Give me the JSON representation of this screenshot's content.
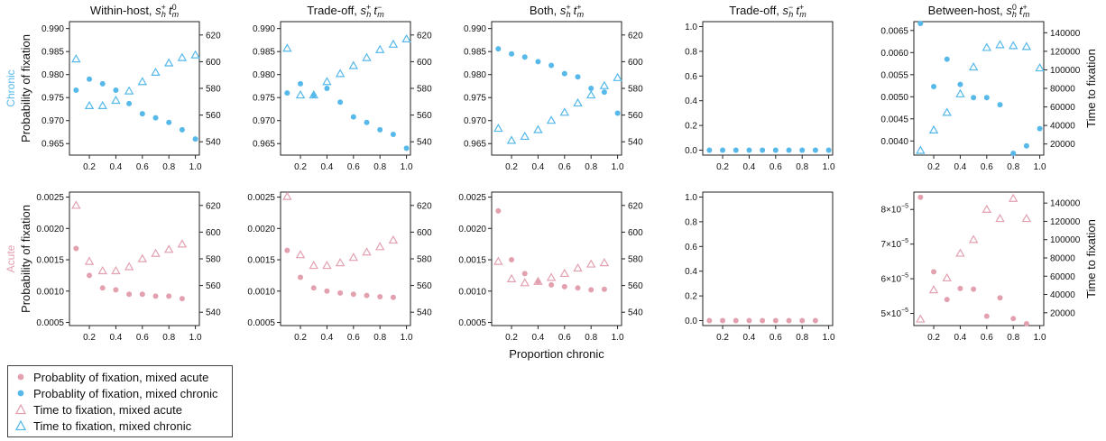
{
  "colors": {
    "acute": "#e3a1b0",
    "chronic": "#56b9ea",
    "axis": "#222222"
  },
  "panel_titles": [
    {
      "main": "Within-host,",
      "t1": "+",
      "t2": "0"
    },
    {
      "main": "Trade-off,",
      "t1": "+",
      "t2": "−"
    },
    {
      "main": "Both,",
      "t1": "+",
      "t2": "+"
    },
    {
      "main": "Trade-off,",
      "t1": "−",
      "t2": "+"
    },
    {
      "main": "Between-host,",
      "t1": "0",
      "t2": "+"
    }
  ],
  "row_labels": {
    "chronic": "Chronic",
    "acute": "Acute"
  },
  "ylabel_left": "Probability of fixation",
  "ylabel_right": "Time to fixation",
  "xlabel": "Proportion chronic",
  "legend": [
    {
      "label": "Probablity of fixation, mixed acute",
      "marker": "circle",
      "color_key": "acute"
    },
    {
      "label": "Probablity of fixation, mixed chronic",
      "marker": "circle",
      "color_key": "chronic"
    },
    {
      "label": "Time to fixation, mixed acute",
      "marker": "triangle",
      "color_key": "acute"
    },
    {
      "label": "Time to fixation, mixed chronic",
      "marker": "triangle",
      "color_key": "chronic"
    }
  ],
  "chart_data": [
    {
      "type": "scatter",
      "row": "chronic",
      "col": 0,
      "x": [
        0.1,
        0.2,
        0.3,
        0.4,
        0.5,
        0.6,
        0.7,
        0.8,
        0.9,
        1.0
      ],
      "left": {
        "ylim": [
          0.9625,
          0.9915
        ],
        "ticks": [
          "0.965",
          "0.970",
          "0.975",
          "0.980",
          "0.985",
          "0.990"
        ],
        "values": [
          0.9766,
          0.979,
          0.978,
          0.9766,
          0.9737,
          0.9715,
          0.9706,
          0.9696,
          0.968,
          0.966
        ]
      },
      "right": {
        "ylim": [
          530,
          630
        ],
        "ticks": [
          "540",
          "560",
          "580",
          "600",
          "620"
        ],
        "values": [
          602,
          567,
          567,
          571,
          578,
          585,
          592,
          599,
          603,
          605
        ]
      }
    },
    {
      "type": "scatter",
      "row": "chronic",
      "col": 1,
      "x": [
        0.1,
        0.2,
        0.3,
        0.4,
        0.5,
        0.6,
        0.7,
        0.8,
        0.9,
        1.0
      ],
      "left": {
        "ylim": [
          0.9625,
          0.9915
        ],
        "ticks": [
          "0.965",
          "0.970",
          "0.975",
          "0.980",
          "0.985",
          "0.990"
        ],
        "values": [
          0.976,
          0.978,
          0.9755,
          0.977,
          0.974,
          0.9708,
          0.9696,
          0.968,
          0.967,
          0.964
        ]
      },
      "right": {
        "ylim": [
          530,
          630
        ],
        "ticks": [
          "540",
          "560",
          "580",
          "600",
          "620"
        ],
        "values": [
          610,
          575,
          575,
          585,
          591,
          597,
          603,
          609,
          613,
          617
        ]
      }
    },
    {
      "type": "scatter",
      "row": "chronic",
      "col": 2,
      "x": [
        0.1,
        0.2,
        0.3,
        0.4,
        0.5,
        0.6,
        0.7,
        0.8,
        0.9,
        1.0
      ],
      "left": {
        "ylim": [
          0.9625,
          0.9915
        ],
        "ticks": [
          "0.965",
          "0.970",
          "0.975",
          "0.980",
          "0.985",
          "0.990"
        ],
        "values": [
          0.9856,
          0.9845,
          0.9838,
          0.9828,
          0.982,
          0.9802,
          0.9795,
          0.977,
          0.9762,
          0.9716
        ]
      },
      "right": {
        "ylim": [
          530,
          630
        ],
        "ticks": [
          "540",
          "560",
          "580",
          "600",
          "620"
        ],
        "values": [
          550,
          541,
          544,
          549,
          556,
          562,
          569,
          575,
          582,
          588
        ]
      }
    },
    {
      "type": "scatter",
      "row": "chronic",
      "col": 3,
      "x": [
        0.1,
        0.2,
        0.3,
        0.4,
        0.5,
        0.6,
        0.7,
        0.8,
        0.9,
        1.0
      ],
      "left": {
        "ylim": [
          -0.04,
          1.04
        ],
        "ticks": [
          "0.0",
          "0.2",
          "0.4",
          "0.6",
          "0.8",
          "1.0"
        ],
        "values": [
          0,
          0,
          0,
          0,
          0,
          0,
          0,
          0,
          0,
          0
        ]
      },
      "right": null
    },
    {
      "type": "scatter",
      "row": "chronic",
      "col": 4,
      "x": [
        0.1,
        0.2,
        0.3,
        0.4,
        0.5,
        0.6,
        0.7,
        0.8,
        0.9,
        1.0
      ],
      "left": {
        "ylim": [
          0.00368,
          0.0067
        ],
        "ticks": [
          "0.0040",
          "0.0045",
          "0.0050",
          "0.0055",
          "0.0060",
          "0.0065"
        ],
        "values": [
          0.00675,
          0.00523,
          0.00585,
          0.00528,
          0.00498,
          0.00498,
          0.00482,
          0.00372,
          0.00389,
          0.00428
        ]
      },
      "right": {
        "ylim": [
          8000,
          152000
        ],
        "ticks": [
          "20000",
          "40000",
          "60000",
          "80000",
          "100000",
          "120000",
          "140000"
        ],
        "values": [
          13000,
          35000,
          54000,
          74000,
          103000,
          124000,
          127000,
          126000,
          125000,
          102000
        ]
      }
    },
    {
      "type": "scatter",
      "row": "acute",
      "col": 0,
      "x": [
        0.1,
        0.2,
        0.3,
        0.4,
        0.5,
        0.6,
        0.7,
        0.8,
        0.9
      ],
      "left": {
        "ylim": [
          0.00045,
          0.00258
        ],
        "ticks": [
          "0.0005",
          "0.0010",
          "0.0015",
          "0.0020",
          "0.0025"
        ],
        "values": [
          0.00168,
          0.00125,
          0.00105,
          0.00102,
          0.00095,
          0.00095,
          0.00092,
          0.00092,
          0.00088
        ]
      },
      "right": {
        "ylim": [
          530,
          630
        ],
        "ticks": [
          "540",
          "560",
          "580",
          "600",
          "620"
        ],
        "values": [
          620,
          578,
          571,
          571,
          574,
          580,
          584,
          587,
          591
        ]
      }
    },
    {
      "type": "scatter",
      "row": "acute",
      "col": 1,
      "x": [
        0.1,
        0.2,
        0.3,
        0.4,
        0.5,
        0.6,
        0.7,
        0.8,
        0.9
      ],
      "left": {
        "ylim": [
          0.00045,
          0.00258
        ],
        "ticks": [
          "0.0005",
          "0.0010",
          "0.0015",
          "0.0020",
          "0.0025"
        ],
        "values": [
          0.00165,
          0.00122,
          0.00105,
          0.001,
          0.00097,
          0.00095,
          0.00093,
          0.00091,
          0.0009
        ]
      },
      "right": {
        "ylim": [
          530,
          630
        ],
        "ticks": [
          "540",
          "560",
          "580",
          "600",
          "620"
        ],
        "values": [
          628,
          583,
          575,
          575,
          577,
          581,
          585,
          589,
          594
        ]
      }
    },
    {
      "type": "scatter",
      "row": "acute",
      "col": 2,
      "x": [
        0.1,
        0.2,
        0.3,
        0.4,
        0.5,
        0.6,
        0.7,
        0.8,
        0.9
      ],
      "left": {
        "ylim": [
          0.00045,
          0.00258
        ],
        "ticks": [
          "0.0005",
          "0.0010",
          "0.0015",
          "0.0020",
          "0.0025"
        ],
        "values": [
          0.00228,
          0.0015,
          0.00128,
          0.00115,
          0.0011,
          0.00107,
          0.00105,
          0.00102,
          0.00103
        ]
      },
      "right": {
        "ylim": [
          530,
          630
        ],
        "ticks": [
          "540",
          "560",
          "580",
          "600",
          "620"
        ],
        "values": [
          578,
          565,
          562,
          563,
          566,
          569,
          573,
          576,
          577
        ]
      }
    },
    {
      "type": "scatter",
      "row": "acute",
      "col": 3,
      "x": [
        0.1,
        0.2,
        0.3,
        0.4,
        0.5,
        0.6,
        0.7,
        0.8,
        0.9
      ],
      "left": {
        "ylim": [
          -0.04,
          1.04
        ],
        "ticks": [
          "0.0",
          "0.2",
          "0.4",
          "0.6",
          "0.8",
          "1.0"
        ],
        "values": [
          0,
          0,
          0,
          0,
          0,
          0,
          0,
          0,
          0
        ]
      },
      "right": null
    },
    {
      "type": "scatter",
      "row": "acute",
      "col": 4,
      "x": [
        0.1,
        0.2,
        0.3,
        0.4,
        0.5,
        0.6,
        0.7,
        0.8,
        0.9
      ],
      "left": {
        "ylim": [
          4.65e-05,
          8.5e-05
        ],
        "ticks": [
          "5",
          "6",
          "7",
          "8"
        ],
        "tick_base": "×10",
        "tick_exp": "−5",
        "tick_values": [
          5e-05,
          6e-05,
          7e-05,
          8e-05
        ],
        "values": [
          8.35e-05,
          6.2e-05,
          5.4e-05,
          5.72e-05,
          5.7e-05,
          4.92e-05,
          5.45e-05,
          4.85e-05,
          4.7e-05
        ]
      },
      "right": {
        "ylim": [
          6000,
          152000
        ],
        "ticks": [
          "20000",
          "40000",
          "60000",
          "80000",
          "100000",
          "120000",
          "140000"
        ],
        "values": [
          13000,
          45000,
          58000,
          85000,
          100000,
          133000,
          123000,
          145000,
          123000
        ]
      }
    }
  ]
}
